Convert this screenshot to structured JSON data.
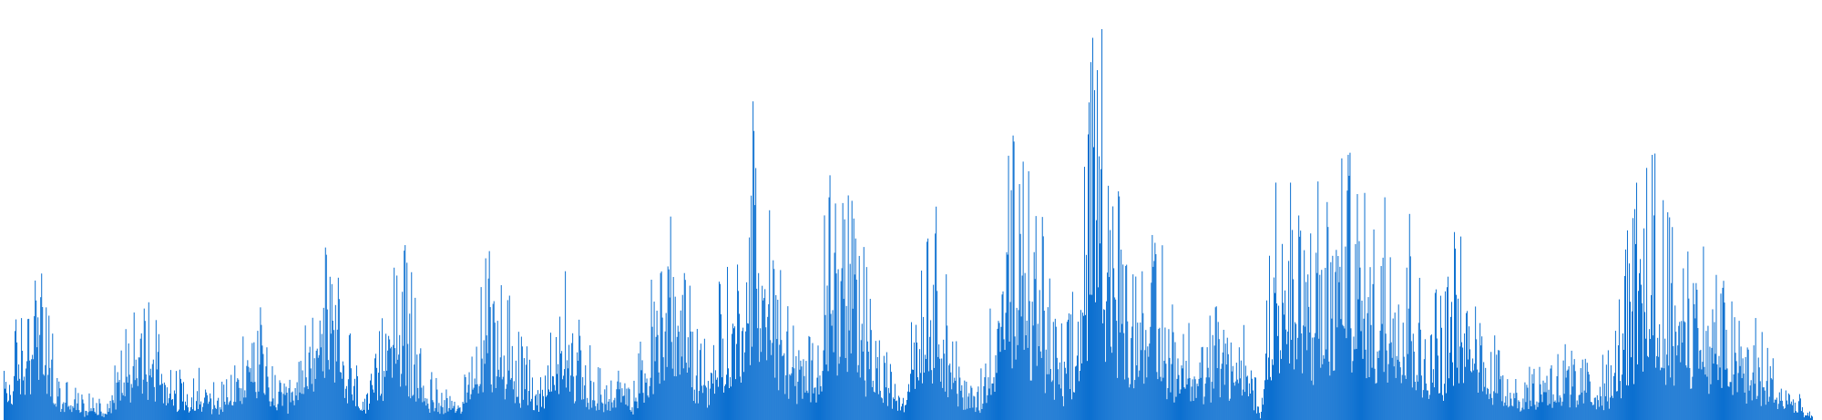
{
  "chart_data": {
    "type": "bar",
    "title": "",
    "xlabel": "",
    "ylabel": "",
    "grid": false,
    "legend": "none",
    "color": "#0b6fd0",
    "bar_count": 1976,
    "ylim": [
      0,
      100
    ],
    "envelope_points": [
      [
        0,
        12
      ],
      [
        10,
        20
      ],
      [
        25,
        33
      ],
      [
        38,
        40
      ],
      [
        50,
        23
      ],
      [
        62,
        10
      ],
      [
        75,
        8
      ],
      [
        88,
        5
      ],
      [
        100,
        8
      ],
      [
        110,
        4
      ],
      [
        122,
        14
      ],
      [
        135,
        24
      ],
      [
        147,
        38
      ],
      [
        160,
        28
      ],
      [
        172,
        20
      ],
      [
        185,
        14
      ],
      [
        197,
        10
      ],
      [
        210,
        12
      ],
      [
        222,
        10
      ],
      [
        235,
        8
      ],
      [
        248,
        10
      ],
      [
        260,
        18
      ],
      [
        272,
        32
      ],
      [
        285,
        20
      ],
      [
        297,
        10
      ],
      [
        310,
        8
      ],
      [
        322,
        14
      ],
      [
        335,
        30
      ],
      [
        347,
        44
      ],
      [
        360,
        36
      ],
      [
        372,
        28
      ],
      [
        385,
        12
      ],
      [
        397,
        6
      ],
      [
        410,
        20
      ],
      [
        422,
        50
      ],
      [
        435,
        42
      ],
      [
        447,
        30
      ],
      [
        460,
        12
      ],
      [
        472,
        10
      ],
      [
        485,
        8
      ],
      [
        497,
        8
      ],
      [
        510,
        12
      ],
      [
        522,
        34
      ],
      [
        535,
        42
      ],
      [
        547,
        32
      ],
      [
        560,
        20
      ],
      [
        572,
        16
      ],
      [
        585,
        10
      ],
      [
        597,
        20
      ],
      [
        610,
        38
      ],
      [
        622,
        26
      ],
      [
        635,
        18
      ],
      [
        647,
        14
      ],
      [
        660,
        10
      ],
      [
        672,
        12
      ],
      [
        685,
        6
      ],
      [
        697,
        20
      ],
      [
        710,
        36
      ],
      [
        722,
        60
      ],
      [
        735,
        44
      ],
      [
        747,
        36
      ],
      [
        760,
        18
      ],
      [
        772,
        20
      ],
      [
        785,
        40
      ],
      [
        797,
        30
      ],
      [
        810,
        56
      ],
      [
        822,
        78
      ],
      [
        835,
        60
      ],
      [
        847,
        34
      ],
      [
        860,
        24
      ],
      [
        872,
        20
      ],
      [
        885,
        18
      ],
      [
        897,
        56
      ],
      [
        910,
        70
      ],
      [
        922,
        60
      ],
      [
        935,
        44
      ],
      [
        947,
        30
      ],
      [
        960,
        16
      ],
      [
        972,
        14
      ],
      [
        985,
        12
      ],
      [
        997,
        42
      ],
      [
        1010,
        56
      ],
      [
        1022,
        46
      ],
      [
        1035,
        28
      ],
      [
        1047,
        10
      ],
      [
        1060,
        8
      ],
      [
        1072,
        14
      ],
      [
        1085,
        46
      ],
      [
        1097,
        64
      ],
      [
        1110,
        60
      ],
      [
        1122,
        52
      ],
      [
        1135,
        46
      ],
      [
        1147,
        24
      ],
      [
        1160,
        20
      ],
      [
        1172,
        36
      ],
      [
        1185,
        82
      ],
      [
        1197,
        100
      ],
      [
        1210,
        78
      ],
      [
        1222,
        48
      ],
      [
        1235,
        44
      ],
      [
        1247,
        40
      ],
      [
        1260,
        44
      ],
      [
        1272,
        30
      ],
      [
        1285,
        24
      ],
      [
        1297,
        24
      ],
      [
        1310,
        22
      ],
      [
        1322,
        26
      ],
      [
        1335,
        30
      ],
      [
        1347,
        22
      ],
      [
        1360,
        24
      ],
      [
        1372,
        2
      ],
      [
        1385,
        58
      ],
      [
        1397,
        66
      ],
      [
        1410,
        54
      ],
      [
        1422,
        46
      ],
      [
        1435,
        52
      ],
      [
        1447,
        48
      ],
      [
        1460,
        60
      ],
      [
        1472,
        62
      ],
      [
        1485,
        54
      ],
      [
        1497,
        50
      ],
      [
        1510,
        56
      ],
      [
        1522,
        56
      ],
      [
        1535,
        54
      ],
      [
        1547,
        30
      ],
      [
        1560,
        30
      ],
      [
        1572,
        30
      ],
      [
        1585,
        46
      ],
      [
        1597,
        34
      ],
      [
        1610,
        30
      ],
      [
        1622,
        24
      ],
      [
        1635,
        18
      ],
      [
        1647,
        14
      ],
      [
        1660,
        10
      ],
      [
        1672,
        16
      ],
      [
        1685,
        18
      ],
      [
        1697,
        18
      ],
      [
        1710,
        18
      ],
      [
        1722,
        14
      ],
      [
        1735,
        16
      ],
      [
        1747,
        14
      ],
      [
        1760,
        20
      ],
      [
        1772,
        44
      ],
      [
        1785,
        56
      ],
      [
        1797,
        70
      ],
      [
        1810,
        58
      ],
      [
        1822,
        48
      ],
      [
        1835,
        46
      ],
      [
        1847,
        42
      ],
      [
        1860,
        38
      ],
      [
        1872,
        34
      ],
      [
        1885,
        28
      ],
      [
        1897,
        26
      ],
      [
        1910,
        24
      ],
      [
        1922,
        20
      ],
      [
        1935,
        14
      ],
      [
        1947,
        10
      ],
      [
        1960,
        6
      ],
      [
        1968,
        3
      ],
      [
        1976,
        1
      ]
    ]
  }
}
